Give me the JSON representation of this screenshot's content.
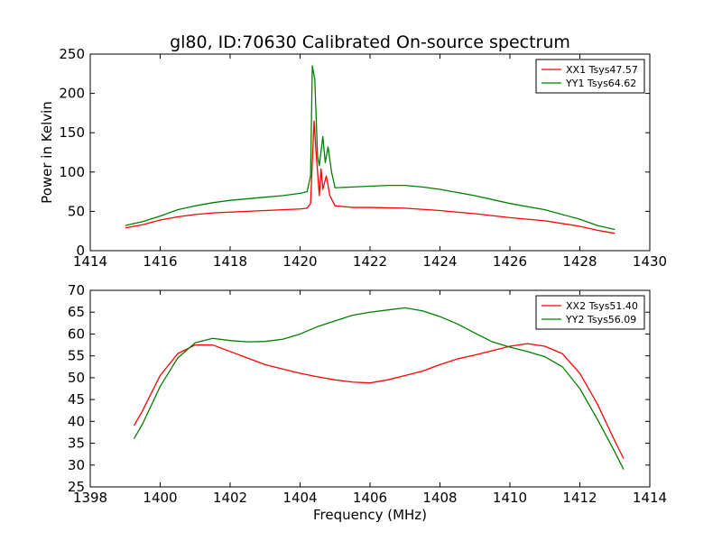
{
  "chart_data": [
    {
      "type": "line",
      "title": "gl80, ID:70630 Calibrated On-source spectrum",
      "xlabel": "",
      "ylabel": "Power in Kelvin",
      "xlim": [
        1414,
        1430
      ],
      "ylim": [
        0,
        250
      ],
      "xticks": [
        "1414",
        "1416",
        "1418",
        "1420",
        "1422",
        "1424",
        "1426",
        "1428",
        "1430"
      ],
      "yticks": [
        "0",
        "50",
        "100",
        "150",
        "200",
        "250"
      ],
      "legend_position": "top-right",
      "grid": false,
      "series": [
        {
          "name": "XX1 Tsys47.57",
          "color": "#ff0000",
          "points": [
            [
              1415.0,
              29
            ],
            [
              1415.5,
              33
            ],
            [
              1416.0,
              39
            ],
            [
              1416.5,
              43
            ],
            [
              1417.0,
              46
            ],
            [
              1417.5,
              48
            ],
            [
              1418.0,
              49
            ],
            [
              1418.5,
              50
            ],
            [
              1419.0,
              51
            ],
            [
              1419.5,
              52
            ],
            [
              1420.0,
              53
            ],
            [
              1420.2,
              54
            ],
            [
              1420.3,
              60
            ],
            [
              1420.4,
              165
            ],
            [
              1420.45,
              130
            ],
            [
              1420.5,
              100
            ],
            [
              1420.55,
              70
            ],
            [
              1420.6,
              104
            ],
            [
              1420.65,
              78
            ],
            [
              1420.75,
              95
            ],
            [
              1420.85,
              70
            ],
            [
              1421.0,
              57
            ],
            [
              1421.5,
              55
            ],
            [
              1422.0,
              55
            ],
            [
              1423.0,
              54
            ],
            [
              1424.0,
              51
            ],
            [
              1425.0,
              47
            ],
            [
              1426.0,
              42
            ],
            [
              1427.0,
              38
            ],
            [
              1428.0,
              31
            ],
            [
              1428.5,
              26
            ],
            [
              1429.0,
              22
            ]
          ]
        },
        {
          "name": "YY1 Tsys64.62",
          "color": "#008000",
          "points": [
            [
              1415.0,
              32
            ],
            [
              1415.5,
              37
            ],
            [
              1416.0,
              44
            ],
            [
              1416.5,
              52
            ],
            [
              1417.0,
              57
            ],
            [
              1417.5,
              61
            ],
            [
              1418.0,
              64
            ],
            [
              1418.5,
              66
            ],
            [
              1419.0,
              68
            ],
            [
              1419.5,
              70
            ],
            [
              1420.0,
              73
            ],
            [
              1420.2,
              75
            ],
            [
              1420.3,
              95
            ],
            [
              1420.35,
              235
            ],
            [
              1420.42,
              218
            ],
            [
              1420.5,
              120
            ],
            [
              1420.55,
              108
            ],
            [
              1420.65,
              145
            ],
            [
              1420.72,
              112
            ],
            [
              1420.8,
              132
            ],
            [
              1420.9,
              100
            ],
            [
              1421.0,
              80
            ],
            [
              1421.5,
              81
            ],
            [
              1422.0,
              82
            ],
            [
              1422.5,
              83
            ],
            [
              1423.0,
              83
            ],
            [
              1423.5,
              81
            ],
            [
              1424.0,
              78
            ],
            [
              1425.0,
              70
            ],
            [
              1426.0,
              60
            ],
            [
              1427.0,
              52
            ],
            [
              1428.0,
              40
            ],
            [
              1428.5,
              32
            ],
            [
              1429.0,
              27
            ]
          ]
        }
      ]
    },
    {
      "type": "line",
      "title": "",
      "xlabel": "Frequency (MHz)",
      "ylabel": "",
      "xlim": [
        1398,
        1414
      ],
      "ylim": [
        25,
        70
      ],
      "xticks": [
        "1398",
        "1400",
        "1402",
        "1404",
        "1406",
        "1408",
        "1410",
        "1412",
        "1414"
      ],
      "yticks": [
        "25",
        "30",
        "35",
        "40",
        "45",
        "50",
        "55",
        "60",
        "65",
        "70"
      ],
      "legend_position": "top-right",
      "grid": false,
      "series": [
        {
          "name": "XX2 Tsys51.40",
          "color": "#ff0000",
          "points": [
            [
              1399.25,
              39
            ],
            [
              1399.5,
              42.5
            ],
            [
              1400.0,
              50.5
            ],
            [
              1400.5,
              55.5
            ],
            [
              1401.0,
              57.5
            ],
            [
              1401.5,
              57.5
            ],
            [
              1402.0,
              56
            ],
            [
              1402.5,
              54.5
            ],
            [
              1403.0,
              53
            ],
            [
              1403.5,
              52
            ],
            [
              1404.0,
              51
            ],
            [
              1404.5,
              50.2
            ],
            [
              1405.0,
              49.5
            ],
            [
              1405.5,
              49
            ],
            [
              1406.0,
              48.8
            ],
            [
              1406.5,
              49.5
            ],
            [
              1407.0,
              50.5
            ],
            [
              1407.5,
              51.5
            ],
            [
              1408.0,
              53
            ],
            [
              1408.5,
              54.3
            ],
            [
              1409.0,
              55.2
            ],
            [
              1409.5,
              56.2
            ],
            [
              1410.0,
              57.2
            ],
            [
              1410.5,
              57.8
            ],
            [
              1411.0,
              57.2
            ],
            [
              1411.5,
              55.5
            ],
            [
              1412.0,
              51
            ],
            [
              1412.5,
              44
            ],
            [
              1413.0,
              35.5
            ],
            [
              1413.25,
              31.5
            ]
          ]
        },
        {
          "name": "YY2 Tsys56.09",
          "color": "#008000",
          "points": [
            [
              1399.25,
              36
            ],
            [
              1399.5,
              39.5
            ],
            [
              1400.0,
              48
            ],
            [
              1400.5,
              54.5
            ],
            [
              1401.0,
              58
            ],
            [
              1401.5,
              59
            ],
            [
              1402.0,
              58.5
            ],
            [
              1402.5,
              58.2
            ],
            [
              1403.0,
              58.3
            ],
            [
              1403.5,
              58.8
            ],
            [
              1404.0,
              60
            ],
            [
              1404.5,
              61.7
            ],
            [
              1405.0,
              63
            ],
            [
              1405.5,
              64.3
            ],
            [
              1406.0,
              65
            ],
            [
              1406.5,
              65.5
            ],
            [
              1407.0,
              66
            ],
            [
              1407.5,
              65.3
            ],
            [
              1408.0,
              64
            ],
            [
              1408.5,
              62.3
            ],
            [
              1409.0,
              60.2
            ],
            [
              1409.5,
              58.2
            ],
            [
              1410.0,
              57
            ],
            [
              1410.5,
              56
            ],
            [
              1411.0,
              54.8
            ],
            [
              1411.5,
              52.5
            ],
            [
              1412.0,
              47.5
            ],
            [
              1412.5,
              40.5
            ],
            [
              1413.0,
              33
            ],
            [
              1413.25,
              29
            ]
          ]
        }
      ]
    }
  ]
}
